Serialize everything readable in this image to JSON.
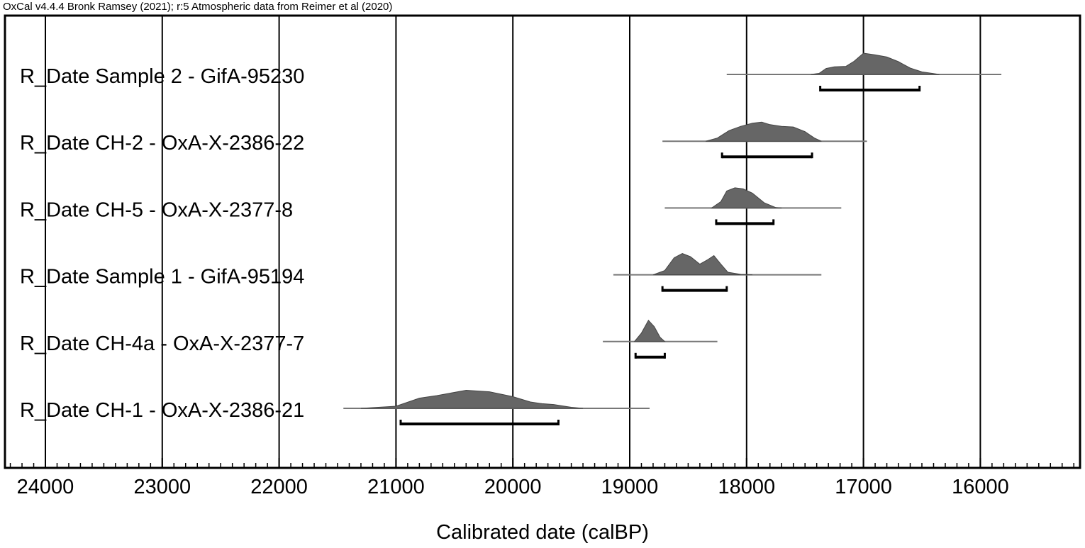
{
  "caption": "OxCal v4.4.4 Bronk Ramsey (2021); r:5 Atmospheric data from Reimer et al (2020)",
  "chart_data": {
    "type": "area",
    "title": "",
    "xlabel": "Calibrated date (calBP)",
    "ylabel": "",
    "xlim": [
      24350,
      15200
    ],
    "x_reversed": true,
    "xticks": [
      24000,
      23000,
      22000,
      21000,
      20000,
      19000,
      18000,
      17000,
      16000
    ],
    "minor_tick_step": 100,
    "grid": true,
    "colors": {
      "distribution": "#666666",
      "frame": "#000000",
      "range_line": "#000000",
      "prior_line": "#777777"
    },
    "series": [
      {
        "name": "R_Date Sample 2 - GifA-95230",
        "baseline_range": [
          18170,
          15820
        ],
        "hpd_range": [
          17370,
          16520
        ],
        "density": [
          [
            17450,
            0
          ],
          [
            17380,
            0.05
          ],
          [
            17320,
            0.28
          ],
          [
            17250,
            0.36
          ],
          [
            17150,
            0.38
          ],
          [
            17080,
            0.62
          ],
          [
            17000,
            1.0
          ],
          [
            16900,
            0.92
          ],
          [
            16800,
            0.82
          ],
          [
            16700,
            0.6
          ],
          [
            16600,
            0.3
          ],
          [
            16500,
            0.12
          ],
          [
            16350,
            0
          ]
        ]
      },
      {
        "name": "R_Date CH-2 - OxA-X-2386-22",
        "baseline_range": [
          18720,
          16970
        ],
        "hpd_range": [
          18210,
          17440
        ],
        "density": [
          [
            18350,
            0
          ],
          [
            18250,
            0.15
          ],
          [
            18150,
            0.5
          ],
          [
            18050,
            0.7
          ],
          [
            17950,
            0.85
          ],
          [
            17870,
            0.9
          ],
          [
            17800,
            0.78
          ],
          [
            17700,
            0.7
          ],
          [
            17600,
            0.67
          ],
          [
            17500,
            0.45
          ],
          [
            17420,
            0.15
          ],
          [
            17360,
            0
          ]
        ]
      },
      {
        "name": "R_Date CH-5 - OxA-X-2377-8",
        "baseline_range": [
          18700,
          17190
        ],
        "hpd_range": [
          18260,
          17770
        ],
        "density": [
          [
            18300,
            0
          ],
          [
            18220,
            0.3
          ],
          [
            18170,
            0.8
          ],
          [
            18100,
            0.95
          ],
          [
            18030,
            0.9
          ],
          [
            17950,
            0.7
          ],
          [
            17850,
            0.25
          ],
          [
            17750,
            0.02
          ],
          [
            17700,
            0
          ]
        ]
      },
      {
        "name": "R_Date Sample 1 - GifA-95194",
        "baseline_range": [
          19140,
          17360
        ],
        "hpd_range": [
          18720,
          18170
        ],
        "density": [
          [
            18800,
            0
          ],
          [
            18700,
            0.2
          ],
          [
            18620,
            0.8
          ],
          [
            18550,
            1.0
          ],
          [
            18480,
            0.85
          ],
          [
            18400,
            0.5
          ],
          [
            18330,
            0.72
          ],
          [
            18280,
            0.9
          ],
          [
            18220,
            0.5
          ],
          [
            18160,
            0.12
          ],
          [
            18050,
            0.02
          ],
          [
            17950,
            0
          ]
        ]
      },
      {
        "name": "R_Date CH-4a - OxA-X-2377-7",
        "baseline_range": [
          19230,
          18250
        ],
        "hpd_range": [
          18950,
          18700
        ],
        "density": [
          [
            18960,
            0
          ],
          [
            18900,
            0.4
          ],
          [
            18840,
            1.0
          ],
          [
            18790,
            0.7
          ],
          [
            18740,
            0.2
          ],
          [
            18700,
            0
          ]
        ]
      },
      {
        "name": "R_Date CH-1 - OxA-X-2386-21",
        "baseline_range": [
          21450,
          18830
        ],
        "hpd_range": [
          20960,
          19610
        ],
        "density": [
          [
            21300,
            0
          ],
          [
            21000,
            0.1
          ],
          [
            20800,
            0.48
          ],
          [
            20650,
            0.6
          ],
          [
            20400,
            0.85
          ],
          [
            20200,
            0.78
          ],
          [
            20000,
            0.55
          ],
          [
            19850,
            0.3
          ],
          [
            19750,
            0.22
          ],
          [
            19650,
            0.18
          ],
          [
            19500,
            0.05
          ],
          [
            19400,
            0
          ]
        ]
      }
    ]
  }
}
